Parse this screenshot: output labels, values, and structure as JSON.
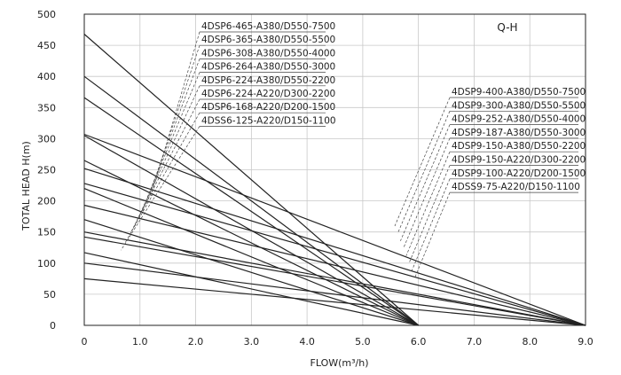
{
  "chart_data": {
    "type": "line",
    "xlabel": "FLOW(m³/h)",
    "ylabel": "TOTAL HEAD H(m)",
    "corner_label": "Q-H",
    "xlim": [
      0,
      9.0
    ],
    "ylim": [
      0,
      500
    ],
    "x_ticks": [
      "0",
      "1.0",
      "2.0",
      "3.0",
      "4.0",
      "5.0",
      "6.0",
      "7.0",
      "8.0",
      "9.0"
    ],
    "y_ticks": [
      "0",
      "50",
      "100",
      "150",
      "200",
      "250",
      "300",
      "350",
      "400",
      "450",
      "500"
    ],
    "grid": true,
    "line_color": "#222222",
    "series": [
      {
        "name": "4DSP6-465-A380/D550-7500",
        "group": "left",
        "x": [
          0,
          6.0
        ],
        "y": [
          468,
          0
        ]
      },
      {
        "name": "4DSP6-365-A380/D550-5500",
        "group": "left",
        "x": [
          0,
          6.0
        ],
        "y": [
          400,
          0
        ]
      },
      {
        "name": "4DSP6-308-A380/D550-4000",
        "group": "left",
        "x": [
          0,
          6.0
        ],
        "y": [
          366,
          0
        ]
      },
      {
        "name": "4DSP6-264-A380/D550-3000",
        "group": "left",
        "x": [
          0,
          6.0
        ],
        "y": [
          305,
          0
        ]
      },
      {
        "name": "4DSP6-224-A380/D550-2200",
        "group": "left",
        "x": [
          0,
          6.0
        ],
        "y": [
          265,
          0
        ]
      },
      {
        "name": "4DSP6-224-A220/D300-2200",
        "group": "left",
        "x": [
          0,
          6.0
        ],
        "y": [
          220,
          0
        ]
      },
      {
        "name": "4DSP6-168-A220/D200-1500",
        "group": "left",
        "x": [
          0,
          6.0
        ],
        "y": [
          170,
          0
        ]
      },
      {
        "name": "4DSS6-125-A220/D150-1100",
        "group": "left",
        "x": [
          0,
          6.0
        ],
        "y": [
          117,
          0
        ]
      },
      {
        "name": "4DSP9-400-A380/D550-7500",
        "group": "right",
        "x": [
          0,
          9.0
        ],
        "y": [
          307,
          0
        ]
      },
      {
        "name": "4DSP9-300-A380/D550-5500",
        "group": "right",
        "x": [
          0,
          9.0
        ],
        "y": [
          252,
          0
        ]
      },
      {
        "name": "4DSP9-252-A380/D550-4000",
        "group": "right",
        "x": [
          0,
          9.0
        ],
        "y": [
          228,
          0
        ]
      },
      {
        "name": "4DSP9-187-A380/D550-3000",
        "group": "right",
        "x": [
          0,
          9.0
        ],
        "y": [
          193,
          0
        ]
      },
      {
        "name": "4DSP9-150-A380/D550-2200",
        "group": "right",
        "x": [
          0,
          9.0
        ],
        "y": [
          150,
          0
        ]
      },
      {
        "name": "4DSP9-150-A220/D300-2200",
        "group": "right",
        "x": [
          0,
          9.0
        ],
        "y": [
          142,
          0
        ]
      },
      {
        "name": "4DSP9-100-A220/D200-1500",
        "group": "right",
        "x": [
          0,
          9.0
        ],
        "y": [
          100,
          0
        ]
      },
      {
        "name": "4DSS9-75-A220/D150-1100",
        "group": "right",
        "x": [
          0,
          9.0
        ],
        "y": [
          75,
          0
        ]
      }
    ]
  }
}
